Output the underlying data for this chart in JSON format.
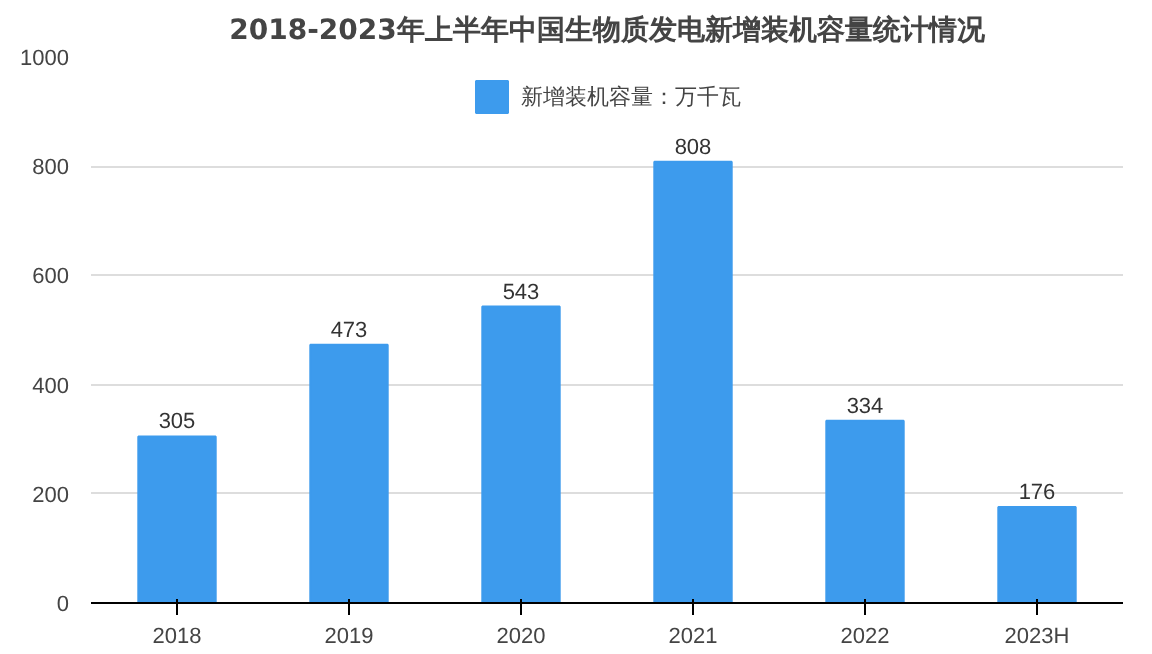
{
  "chart_data": {
    "type": "bar",
    "title": "2018-2023年上半年中国生物质发电新增装机容量统计情况",
    "categories": [
      "2018",
      "2019",
      "2020",
      "2021",
      "2022",
      "2023H"
    ],
    "series": [
      {
        "name": "新增装机容量：万千瓦",
        "color": "#3d9bed",
        "values": [
          305,
          473,
          543,
          808,
          334,
          176
        ]
      }
    ],
    "ylim": [
      0,
      1000
    ],
    "yticks": [
      0,
      200,
      400,
      600,
      800,
      1000
    ],
    "grid": "y",
    "legend": "top",
    "data_labels": true
  }
}
